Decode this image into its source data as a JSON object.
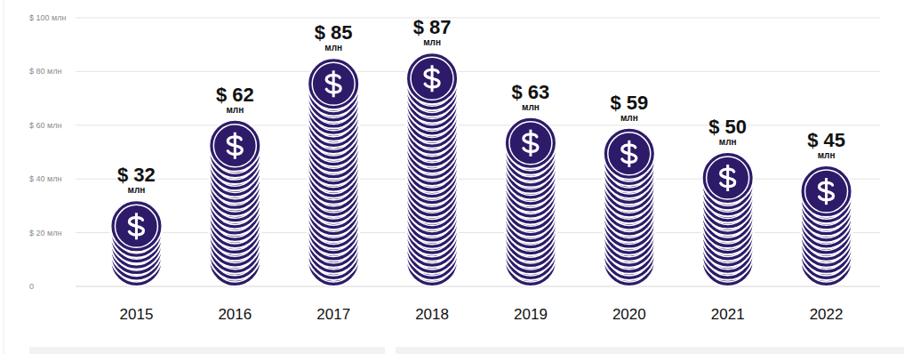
{
  "chart_data": {
    "type": "bar",
    "categories": [
      "2015",
      "2016",
      "2017",
      "2018",
      "2019",
      "2020",
      "2021",
      "2022"
    ],
    "values": [
      32,
      62,
      85,
      87,
      63,
      59,
      50,
      45
    ],
    "value_labels": [
      "$ 32 млн",
      "$ 62 млн",
      "$ 85 млн",
      "$ 87 млн",
      "$ 63 млн",
      "$ 59 млн",
      "$ 50 млн",
      "$ 45 млн"
    ],
    "data_labels": true,
    "color": "#2d1b69",
    "ylim": [
      0,
      100
    ],
    "yticks": [
      {
        "value": 100,
        "label": "$ 100 млн"
      },
      {
        "value": 80,
        "label": "$ 80 млн"
      },
      {
        "value": 60,
        "label": "$ 60 млн"
      },
      {
        "value": 40,
        "label": "$ 40 млн"
      },
      {
        "value": 20,
        "label": "$ 20 млн"
      },
      0
    ],
    "grid": true
  }
}
